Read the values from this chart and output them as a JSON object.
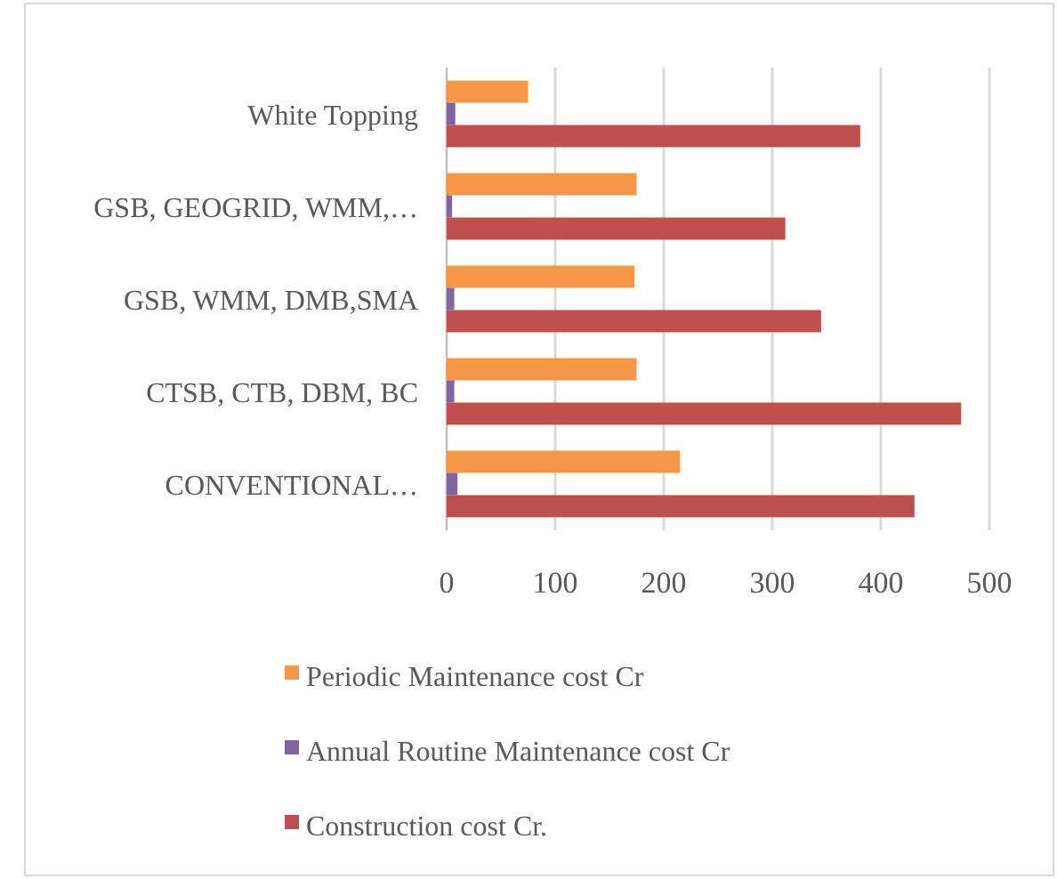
{
  "chart_data": {
    "type": "bar",
    "orientation": "horizontal",
    "categories": [
      "White Topping",
      "GSB, GEOGRID, WMM,…",
      "GSB, WMM, DMB,SMA",
      "CTSB, CTB, DBM, BC",
      "CONVENTIONAL…"
    ],
    "series": [
      {
        "name": "Periodic Maintenance cost Cr",
        "color": "#f79646",
        "values": [
          75,
          175,
          173,
          175,
          215
        ]
      },
      {
        "name": "Annual Routine Maintenance cost Cr",
        "color": "#8064a2",
        "values": [
          8,
          5,
          7,
          7,
          10
        ]
      },
      {
        "name": "Construction cost Cr.",
        "color": "#c0504d",
        "values": [
          381,
          312,
          345,
          474,
          431
        ]
      }
    ],
    "xlim": [
      0,
      500
    ],
    "xticks": [
      0,
      100,
      200,
      300,
      400,
      500
    ],
    "grid": "x",
    "legend": "bottom"
  }
}
